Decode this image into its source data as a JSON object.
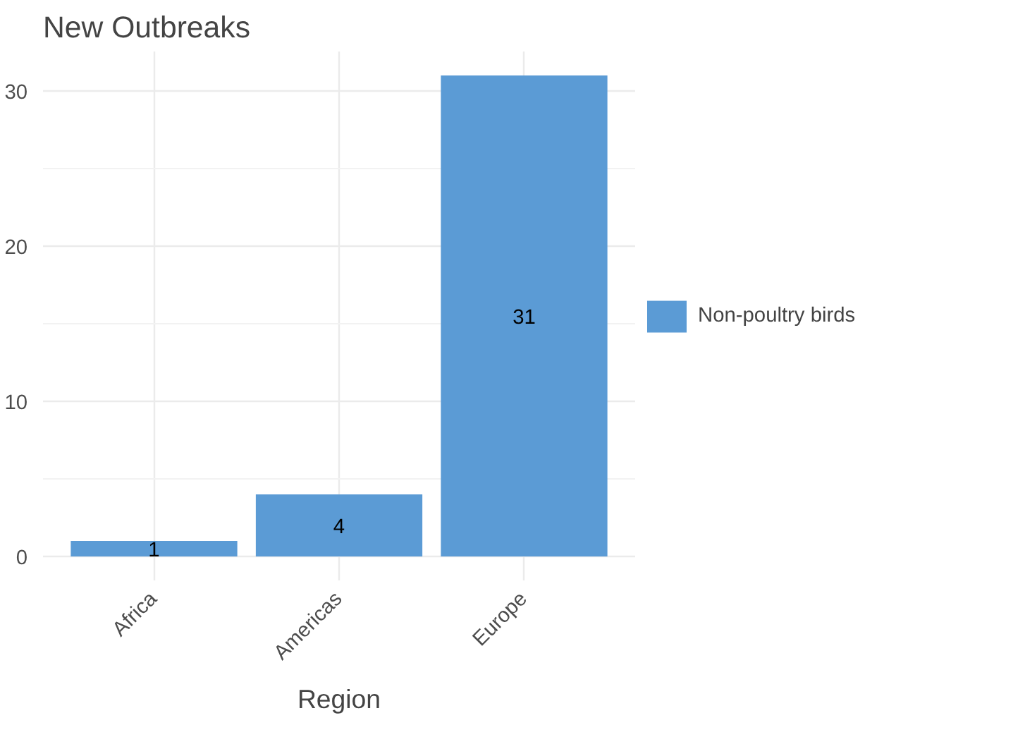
{
  "chart_data": {
    "type": "bar",
    "title": "New Outbreaks",
    "xlabel": "Region",
    "categories": [
      "Africa",
      "Americas",
      "Europe"
    ],
    "series": [
      {
        "name": "Non-poultry birds",
        "color": "#5b9bd5",
        "values": [
          1,
          4,
          31
        ]
      }
    ],
    "ylim": [
      -1.55,
      32.55
    ],
    "yticks": [
      0,
      10,
      20,
      30
    ],
    "grid": true,
    "legend": "right",
    "data_labels": true
  }
}
